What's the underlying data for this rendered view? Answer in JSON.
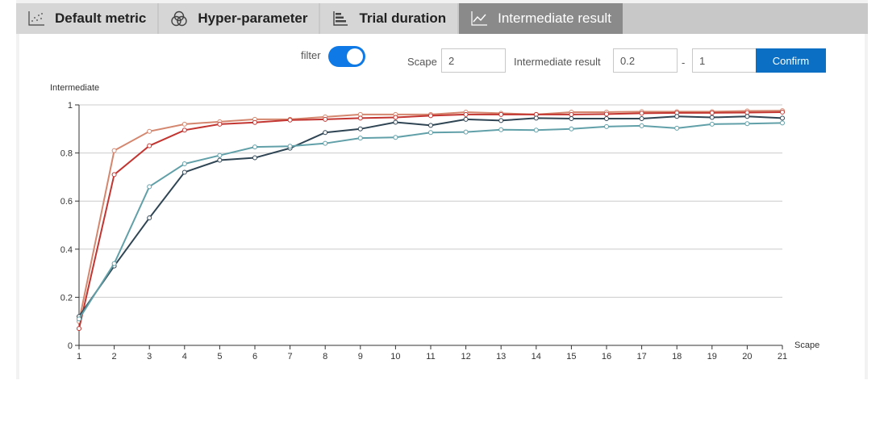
{
  "tabs": [
    {
      "label": "Default metric",
      "icon": "scatter-icon",
      "active": false
    },
    {
      "label": "Hyper-parameter",
      "icon": "venn-icon",
      "active": false
    },
    {
      "label": "Trial duration",
      "icon": "bar-chart-icon",
      "active": false
    },
    {
      "label": "Intermediate result",
      "icon": "line-chart-icon",
      "active": true
    }
  ],
  "controls": {
    "filter_label": "filter",
    "filter_on": true,
    "scape_label": "Scape",
    "scape_value": "2",
    "intermediate_label": "Intermediate result",
    "min_value": "0.2",
    "range_separator": "-",
    "max_value": "1",
    "confirm_label": "Confirm"
  },
  "chart_data": {
    "type": "line",
    "xlabel": "Scape",
    "ylabel": "Intermediate",
    "x": [
      1,
      2,
      3,
      4,
      5,
      6,
      7,
      8,
      9,
      10,
      11,
      12,
      13,
      14,
      15,
      16,
      17,
      18,
      19,
      20,
      21
    ],
    "ylim": [
      0,
      1
    ],
    "yticks": [
      "0",
      "0.2",
      "0.4",
      "0.6",
      "0.8",
      "1"
    ],
    "grid": true,
    "series": [
      {
        "color": "#d4876e",
        "values": [
          0.1,
          0.81,
          0.89,
          0.92,
          0.93,
          0.94,
          0.94,
          0.95,
          0.96,
          0.96,
          0.96,
          0.97,
          0.965,
          0.96,
          0.97,
          0.97,
          0.972,
          0.972,
          0.972,
          0.975,
          0.976
        ]
      },
      {
        "color": "#c23531",
        "values": [
          0.07,
          0.71,
          0.83,
          0.895,
          0.92,
          0.927,
          0.937,
          0.94,
          0.945,
          0.948,
          0.955,
          0.96,
          0.96,
          0.96,
          0.96,
          0.962,
          0.965,
          0.967,
          0.967,
          0.968,
          0.97
        ]
      },
      {
        "color": "#2f4554",
        "values": [
          0.12,
          0.33,
          0.53,
          0.72,
          0.77,
          0.78,
          0.82,
          0.885,
          0.9,
          0.928,
          0.915,
          0.94,
          0.935,
          0.945,
          0.943,
          0.943,
          0.943,
          0.952,
          0.948,
          0.952,
          0.945
        ]
      },
      {
        "color": "#61a0a8",
        "values": [
          0.11,
          0.34,
          0.66,
          0.755,
          0.79,
          0.825,
          0.828,
          0.84,
          0.862,
          0.865,
          0.885,
          0.887,
          0.897,
          0.895,
          0.9,
          0.91,
          0.913,
          0.903,
          0.92,
          0.922,
          0.925
        ]
      }
    ]
  }
}
